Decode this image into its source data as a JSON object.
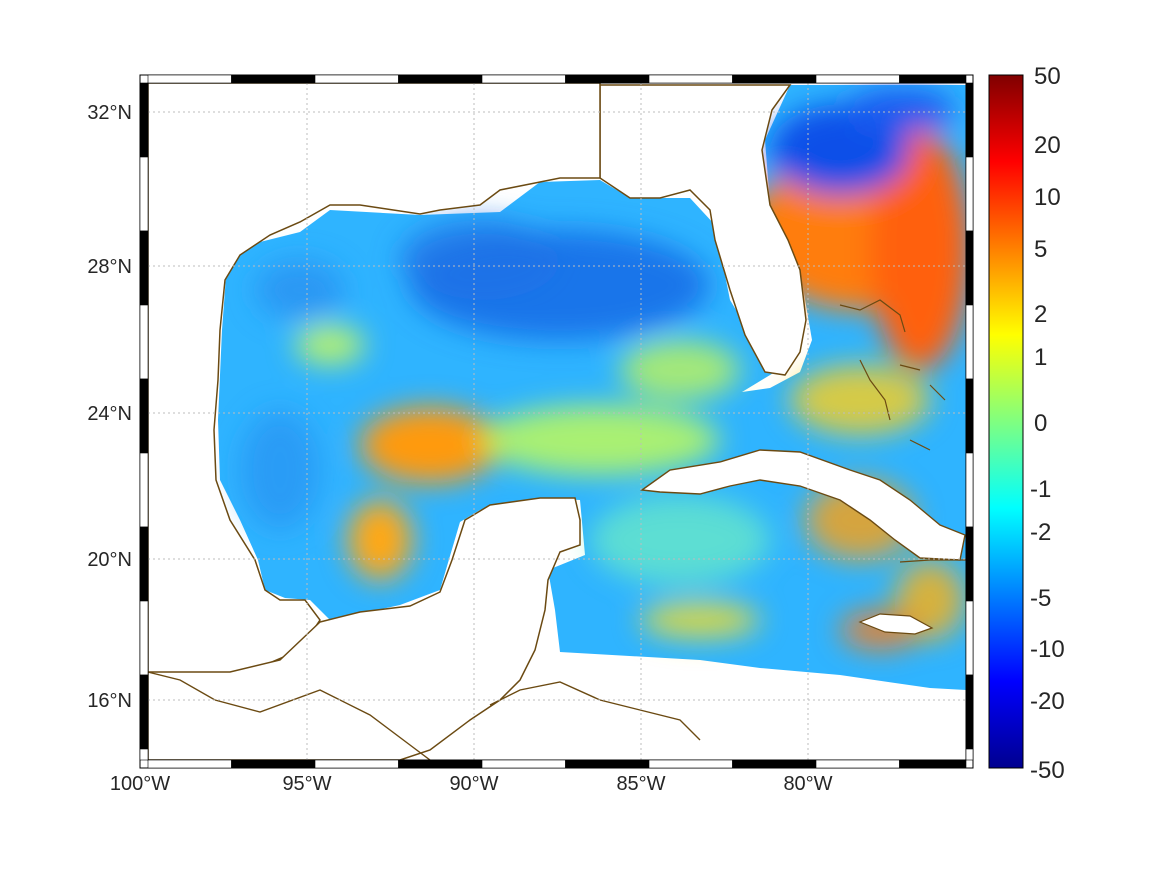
{
  "map": {
    "projection": "equirectangular",
    "lon_range": [
      -100,
      -75
    ],
    "lat_range": [
      14.2,
      33
    ],
    "lon_ticks": [
      {
        "value": -100,
        "label": "100°W"
      },
      {
        "value": -95,
        "label": "95°W"
      },
      {
        "value": -90,
        "label": "90°W"
      },
      {
        "value": -85,
        "label": "85°W"
      },
      {
        "value": -80,
        "label": "80°W"
      }
    ],
    "lat_ticks": [
      {
        "value": 32,
        "label": "32°N"
      },
      {
        "value": 28,
        "label": "28°N"
      },
      {
        "value": 24,
        "label": "24°N"
      },
      {
        "value": 20,
        "label": "20°N"
      },
      {
        "value": 16,
        "label": "16°N"
      }
    ],
    "grid": true,
    "frame_style": "alternating black/white border",
    "coastline_color": "#6b4a12",
    "field": "unlabeled anomaly field",
    "colormap": "jet"
  },
  "colorbar": {
    "placement": "right",
    "scale": "nonlinear (symmetric)",
    "ticks": [
      {
        "label": "50",
        "value": 50
      },
      {
        "label": "20",
        "value": 20
      },
      {
        "label": "10",
        "value": 10
      },
      {
        "label": "5",
        "value": 5
      },
      {
        "label": "2",
        "value": 2
      },
      {
        "label": "1",
        "value": 1
      },
      {
        "label": "0",
        "value": 0
      },
      {
        "label": "-1",
        "value": -1
      },
      {
        "label": "-2",
        "value": -2
      },
      {
        "label": "-5",
        "value": -5
      },
      {
        "label": "-10",
        "value": -10
      },
      {
        "label": "-20",
        "value": -20
      },
      {
        "label": "-50",
        "value": -50
      }
    ],
    "colors": [
      "#00008f",
      "#0000ff",
      "#0080ff",
      "#00ffff",
      "#80ff80",
      "#ffff00",
      "#ff8000",
      "#ff0000",
      "#800000"
    ]
  }
}
